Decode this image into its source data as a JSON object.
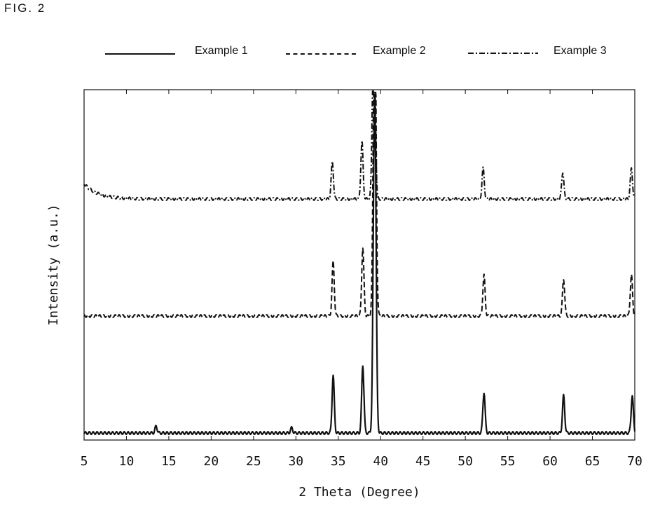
{
  "figure": {
    "label": "FIG. 2"
  },
  "chart_data": {
    "type": "line",
    "title": "",
    "xlabel": "2 Theta (Degree)",
    "ylabel": "Intensity (a.u.)",
    "xlim": [
      5,
      70
    ],
    "xticks": [
      5,
      10,
      15,
      20,
      25,
      30,
      35,
      40,
      45,
      50,
      55,
      60,
      65,
      70
    ],
    "xtick_labels": [
      "5",
      "10",
      "15",
      "20",
      "25",
      "30",
      "35",
      "40",
      "45",
      "50",
      "55",
      "60",
      "65",
      "70"
    ],
    "y_ticks_shown": false,
    "grid": false,
    "legend_position": "top",
    "series": [
      {
        "name": "Example 1",
        "line_style": "solid",
        "peaks": [
          {
            "x": 13.5,
            "intensity": 2
          },
          {
            "x": 29.5,
            "intensity": 1.5
          },
          {
            "x": 34.4,
            "intensity": 17
          },
          {
            "x": 37.9,
            "intensity": 20
          },
          {
            "x": 39.3,
            "intensity": 100
          },
          {
            "x": 52.2,
            "intensity": 12
          },
          {
            "x": 61.6,
            "intensity": 11
          },
          {
            "x": 69.7,
            "intensity": 11
          }
        ]
      },
      {
        "name": "Example 2",
        "line_style": "dashed",
        "peaks": [
          {
            "x": 34.4,
            "intensity": 16
          },
          {
            "x": 37.9,
            "intensity": 20
          },
          {
            "x": 39.3,
            "intensity": 100
          },
          {
            "x": 52.2,
            "intensity": 12
          },
          {
            "x": 61.6,
            "intensity": 11
          },
          {
            "x": 69.6,
            "intensity": 12
          }
        ]
      },
      {
        "name": "Example 3",
        "line_style": "dash-dot",
        "peaks": [
          {
            "x": 34.3,
            "intensity": 11
          },
          {
            "x": 37.8,
            "intensity": 17
          },
          {
            "x": 39.2,
            "intensity": 58
          },
          {
            "x": 52.1,
            "intensity": 9
          },
          {
            "x": 61.5,
            "intensity": 8
          },
          {
            "x": 69.6,
            "intensity": 9
          }
        ]
      }
    ]
  }
}
